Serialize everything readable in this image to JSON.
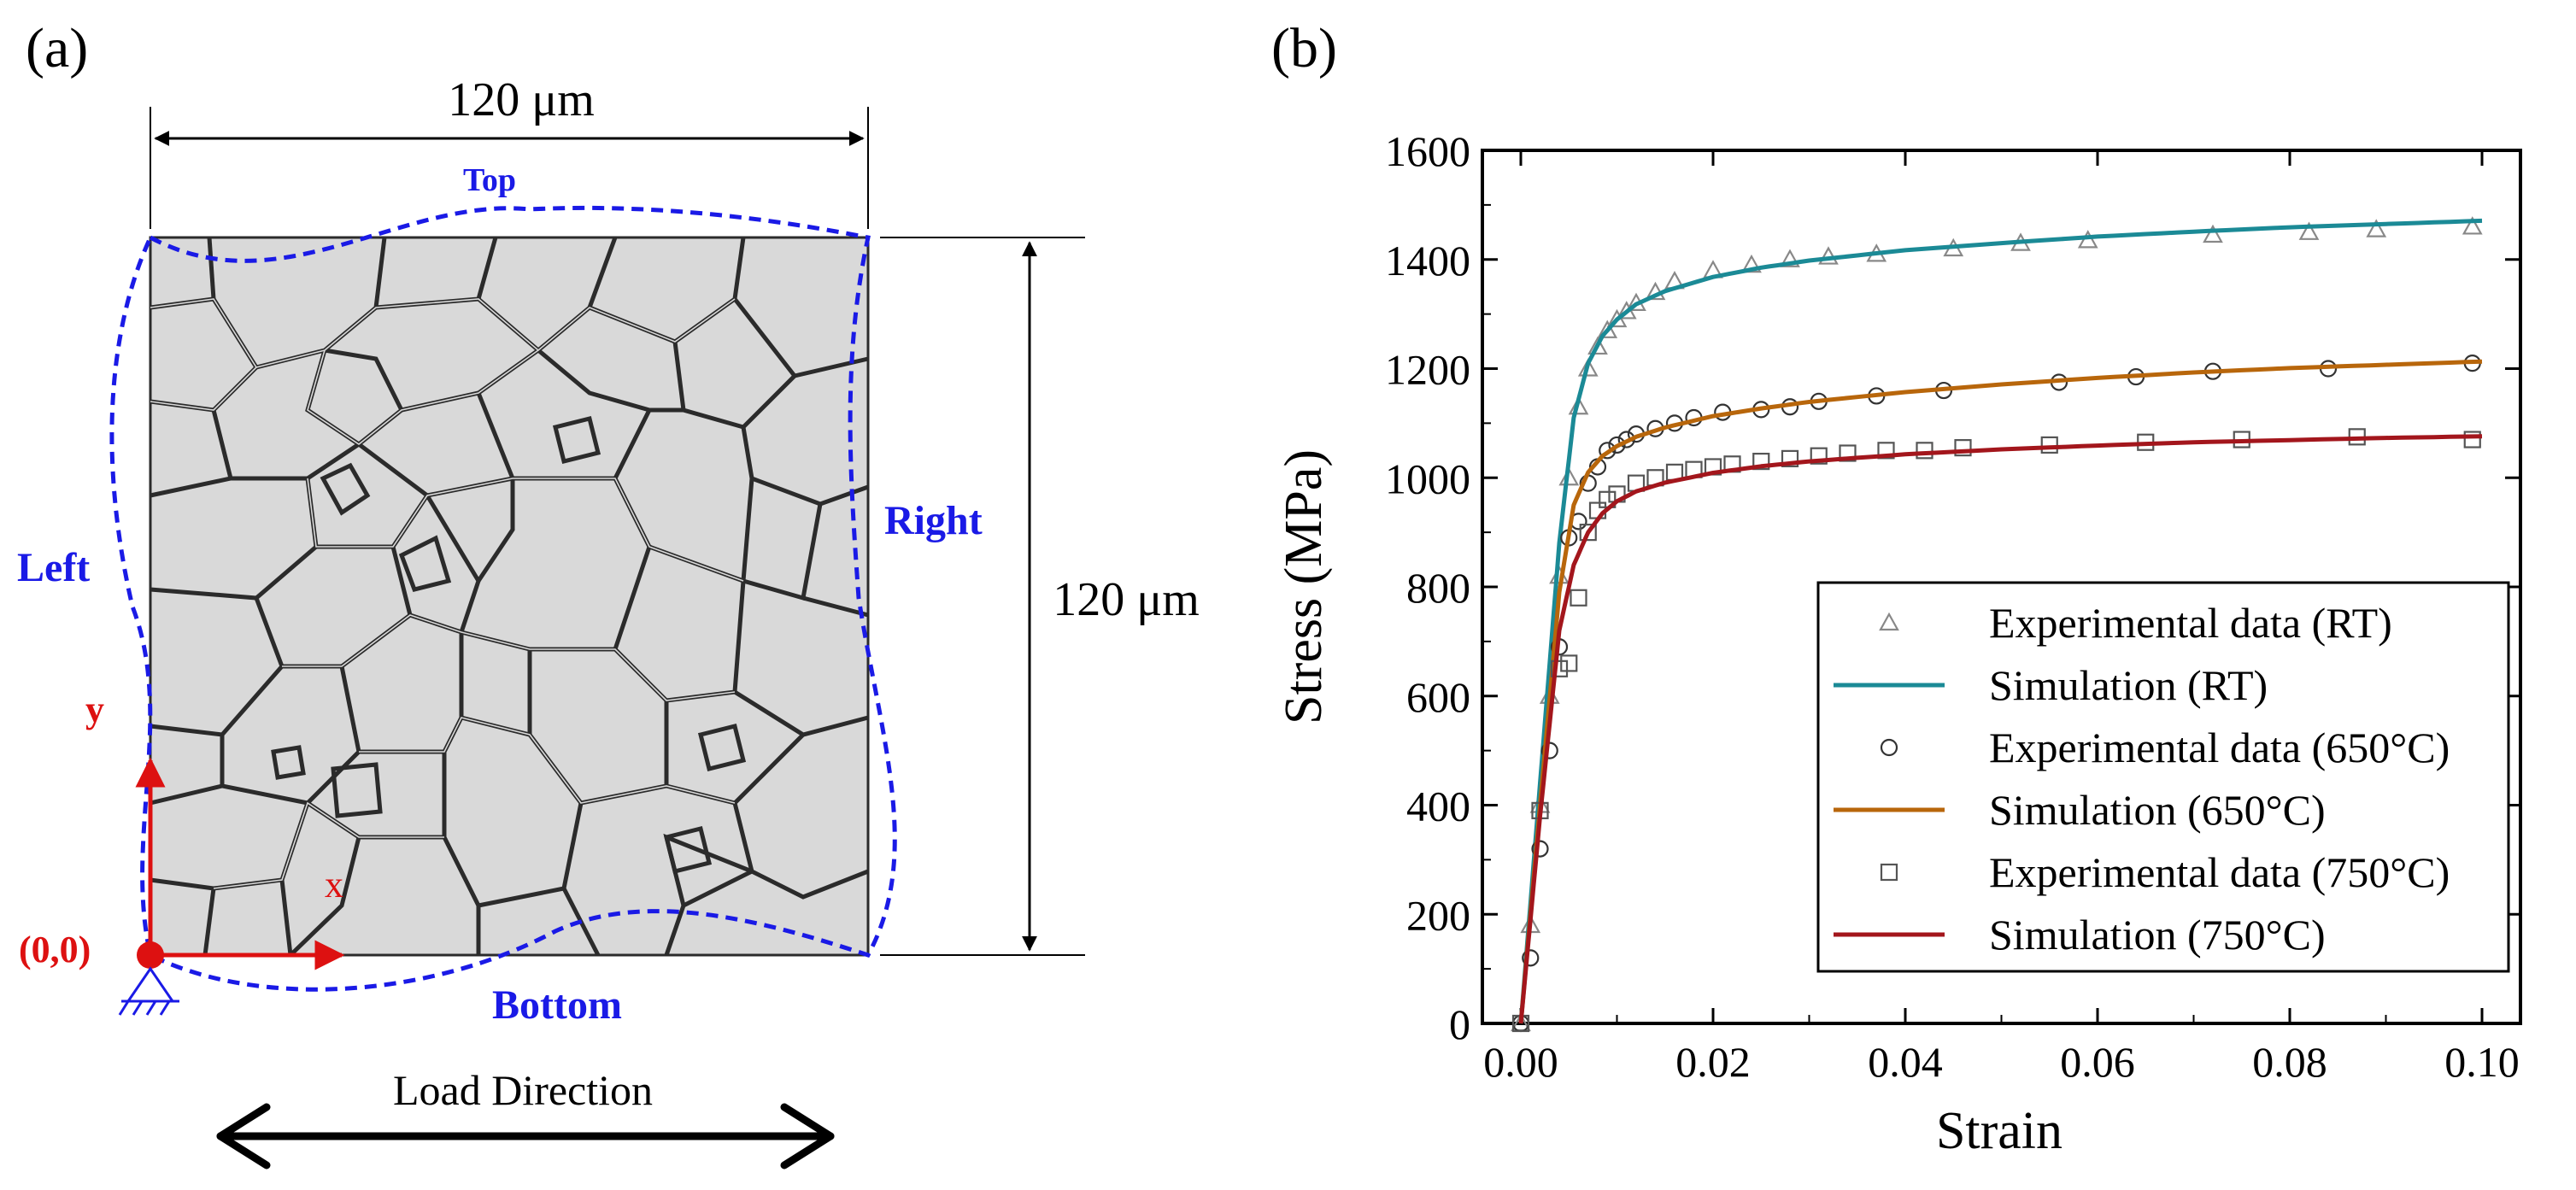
{
  "panel_a": {
    "label": "(a)",
    "width_dim": "120 μm",
    "height_dim": "120 μm",
    "edges": {
      "top": "Top",
      "left": "Left",
      "right": "Right",
      "bottom": "Bottom"
    },
    "axes": {
      "x": "x",
      "y": "y",
      "origin": "(0,0)"
    },
    "load_direction": "Load Direction",
    "colors": {
      "boundary": "#1a1ae6",
      "axes": "#dd1111",
      "grain_fill": "#d9d9d9",
      "grain_edge": "#2b2b2b"
    }
  },
  "panel_b": {
    "label": "(b)"
  },
  "chart_data": {
    "type": "line",
    "title": "",
    "xlabel": "Strain",
    "ylabel": "Stress (MPa)",
    "xlim": [
      -0.004,
      0.104
    ],
    "ylim": [
      0,
      1600
    ],
    "xticks": [
      0.0,
      0.02,
      0.04,
      0.06,
      0.08,
      0.1
    ],
    "xtick_labels": [
      "0.00",
      "0.02",
      "0.04",
      "0.06",
      "0.08",
      "0.10"
    ],
    "yticks": [
      0,
      200,
      400,
      600,
      800,
      1000,
      1200,
      1400,
      1600
    ],
    "ytick_labels": [
      "0",
      "200",
      "400",
      "600",
      "800",
      "1000",
      "1200",
      "1400",
      "1600"
    ],
    "legend_position": "bottom-right",
    "series": [
      {
        "name": "Experimental data (RT)",
        "kind": "scatter",
        "marker": "triangle",
        "color": "#888888",
        "x": [
          0.0,
          0.001,
          0.002,
          0.003,
          0.004,
          0.005,
          0.006,
          0.007,
          0.008,
          0.009,
          0.01,
          0.011,
          0.012,
          0.014,
          0.016,
          0.02,
          0.024,
          0.028,
          0.032,
          0.037,
          0.045,
          0.052,
          0.059,
          0.072,
          0.082,
          0.089,
          0.099
        ],
        "y": [
          0,
          180,
          400,
          600,
          820,
          1000,
          1130,
          1200,
          1240,
          1270,
          1290,
          1305,
          1320,
          1340,
          1360,
          1380,
          1390,
          1400,
          1405,
          1410,
          1420,
          1430,
          1435,
          1445,
          1450,
          1455,
          1460
        ]
      },
      {
        "name": "Simulation (RT)",
        "kind": "line",
        "color": "#1b8a96",
        "x": [
          0.0,
          0.002,
          0.004,
          0.0055,
          0.007,
          0.0085,
          0.01,
          0.012,
          0.015,
          0.02,
          0.025,
          0.03,
          0.04,
          0.05,
          0.06,
          0.07,
          0.08,
          0.09,
          0.1
        ],
        "y": [
          0,
          440,
          880,
          1110,
          1210,
          1260,
          1290,
          1318,
          1342,
          1368,
          1385,
          1398,
          1417,
          1430,
          1442,
          1451,
          1459,
          1465,
          1471
        ]
      },
      {
        "name": "Experimental data (650°C)",
        "kind": "scatter",
        "marker": "circle",
        "color": "#333333",
        "x": [
          0.0,
          0.001,
          0.002,
          0.003,
          0.004,
          0.005,
          0.006,
          0.007,
          0.008,
          0.009,
          0.01,
          0.011,
          0.012,
          0.014,
          0.016,
          0.018,
          0.021,
          0.025,
          0.028,
          0.031,
          0.037,
          0.044,
          0.056,
          0.064,
          0.072,
          0.084,
          0.099
        ],
        "y": [
          0,
          120,
          320,
          500,
          690,
          890,
          920,
          990,
          1020,
          1050,
          1060,
          1070,
          1080,
          1090,
          1100,
          1110,
          1120,
          1125,
          1130,
          1140,
          1150,
          1160,
          1175,
          1185,
          1195,
          1200,
          1210
        ]
      },
      {
        "name": "Simulation (650°C)",
        "kind": "line",
        "color": "#b8660b",
        "x": [
          0.0,
          0.002,
          0.004,
          0.0055,
          0.007,
          0.0085,
          0.01,
          0.012,
          0.015,
          0.02,
          0.025,
          0.03,
          0.04,
          0.05,
          0.06,
          0.07,
          0.08,
          0.09,
          0.1
        ],
        "y": [
          0,
          400,
          790,
          950,
          1010,
          1040,
          1058,
          1075,
          1092,
          1113,
          1127,
          1139,
          1157,
          1171,
          1183,
          1193,
          1201,
          1207,
          1213
        ]
      },
      {
        "name": "Experimental data (750°C)",
        "kind": "scatter",
        "marker": "square",
        "color": "#555555",
        "x": [
          0.0,
          0.002,
          0.004,
          0.005,
          0.006,
          0.007,
          0.008,
          0.009,
          0.01,
          0.012,
          0.014,
          0.016,
          0.018,
          0.02,
          0.022,
          0.025,
          0.028,
          0.031,
          0.034,
          0.038,
          0.042,
          0.046,
          0.055,
          0.065,
          0.075,
          0.087,
          0.099
        ],
        "y": [
          0,
          390,
          650,
          660,
          780,
          900,
          940,
          960,
          970,
          990,
          1000,
          1010,
          1015,
          1020,
          1025,
          1030,
          1035,
          1040,
          1045,
          1050,
          1050,
          1055,
          1060,
          1065,
          1070,
          1075,
          1070
        ]
      },
      {
        "name": "Simulation (750°C)",
        "kind": "line",
        "color": "#a3161c",
        "x": [
          0.0,
          0.002,
          0.004,
          0.0055,
          0.007,
          0.0085,
          0.01,
          0.012,
          0.015,
          0.02,
          0.025,
          0.03,
          0.04,
          0.05,
          0.06,
          0.07,
          0.08,
          0.09,
          0.1
        ],
        "y": [
          0,
          380,
          720,
          840,
          900,
          935,
          957,
          975,
          991,
          1009,
          1021,
          1030,
          1043,
          1052,
          1059,
          1065,
          1069,
          1073,
          1076
        ]
      }
    ]
  }
}
